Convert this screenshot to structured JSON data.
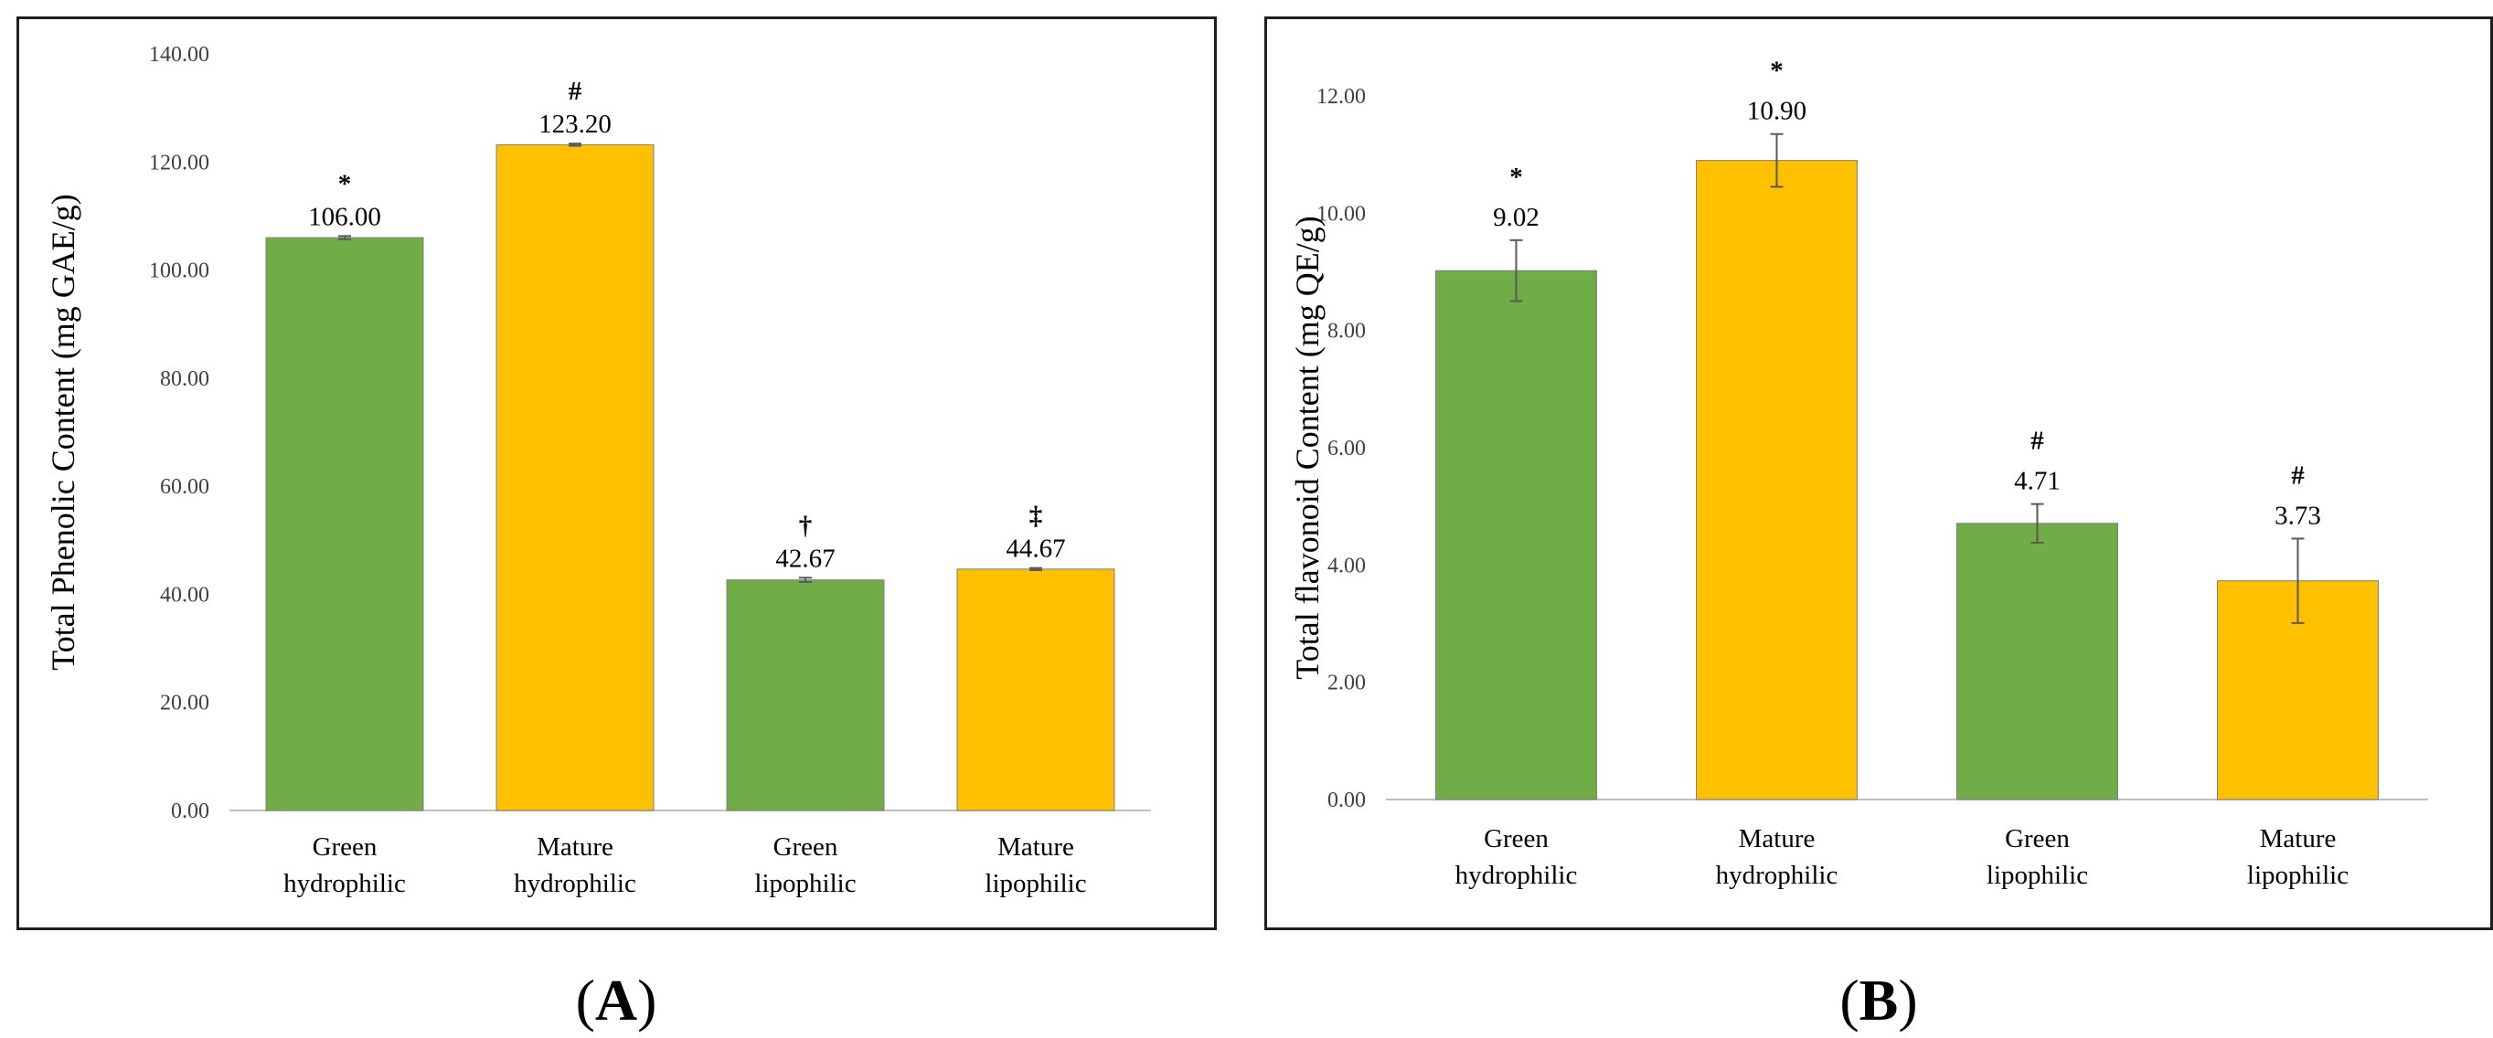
{
  "colors": {
    "green": "#70ad47",
    "yellow": "#ffc000",
    "axis": "#bfbfbf",
    "text": "#404040",
    "errorbar": "#595959"
  },
  "panel_labels": {
    "a": "A",
    "b": "B",
    "open_paren": "(",
    "close_paren": ")"
  },
  "chart_data": [
    {
      "id": "A",
      "type": "bar",
      "ylabel": "Total Phenolic Content (mg GAE/g)",
      "ylim": [
        0,
        140
      ],
      "ytick_step": 20,
      "ytick_labels": [
        "0.00",
        "20.00",
        "40.00",
        "60.00",
        "80.00",
        "100.00",
        "120.00",
        "140.00"
      ],
      "categories": [
        [
          "Green",
          "hydrophilic"
        ],
        [
          "Mature",
          "hydrophilic"
        ],
        [
          "Green",
          "lipophilic"
        ],
        [
          "Mature",
          "lipophilic"
        ]
      ],
      "values": [
        106.0,
        123.2,
        42.67,
        44.67
      ],
      "value_labels": [
        "106.00",
        "123.20",
        "42.67",
        "44.67"
      ],
      "errors": [
        0.3,
        0.2,
        0.4,
        0.2
      ],
      "bar_colors": [
        "#70ad47",
        "#ffc000",
        "#70ad47",
        "#ffc000"
      ],
      "significance": [
        "*",
        "#",
        "†",
        "‡"
      ]
    },
    {
      "id": "B",
      "type": "bar",
      "ylabel": "Total flavonoid Content (mg QE/g)",
      "ylim": [
        0,
        12
      ],
      "ytick_step": 2,
      "ytick_labels": [
        "0.00",
        "2.00",
        "4.00",
        "6.00",
        "8.00",
        "10.00",
        "12.00"
      ],
      "categories": [
        [
          "Green",
          "hydrophilic"
        ],
        [
          "Mature",
          "hydrophilic"
        ],
        [
          "Green",
          "lipophilic"
        ],
        [
          "Mature",
          "lipophilic"
        ]
      ],
      "values": [
        9.02,
        10.9,
        4.71,
        3.73
      ],
      "value_labels": [
        "9.02",
        "10.90",
        "4.71",
        "3.73"
      ],
      "errors": [
        0.52,
        0.45,
        0.33,
        0.72
      ],
      "bar_colors": [
        "#70ad47",
        "#ffc000",
        "#70ad47",
        "#ffc000"
      ],
      "significance": [
        "*",
        "*",
        "#",
        "#"
      ]
    }
  ]
}
